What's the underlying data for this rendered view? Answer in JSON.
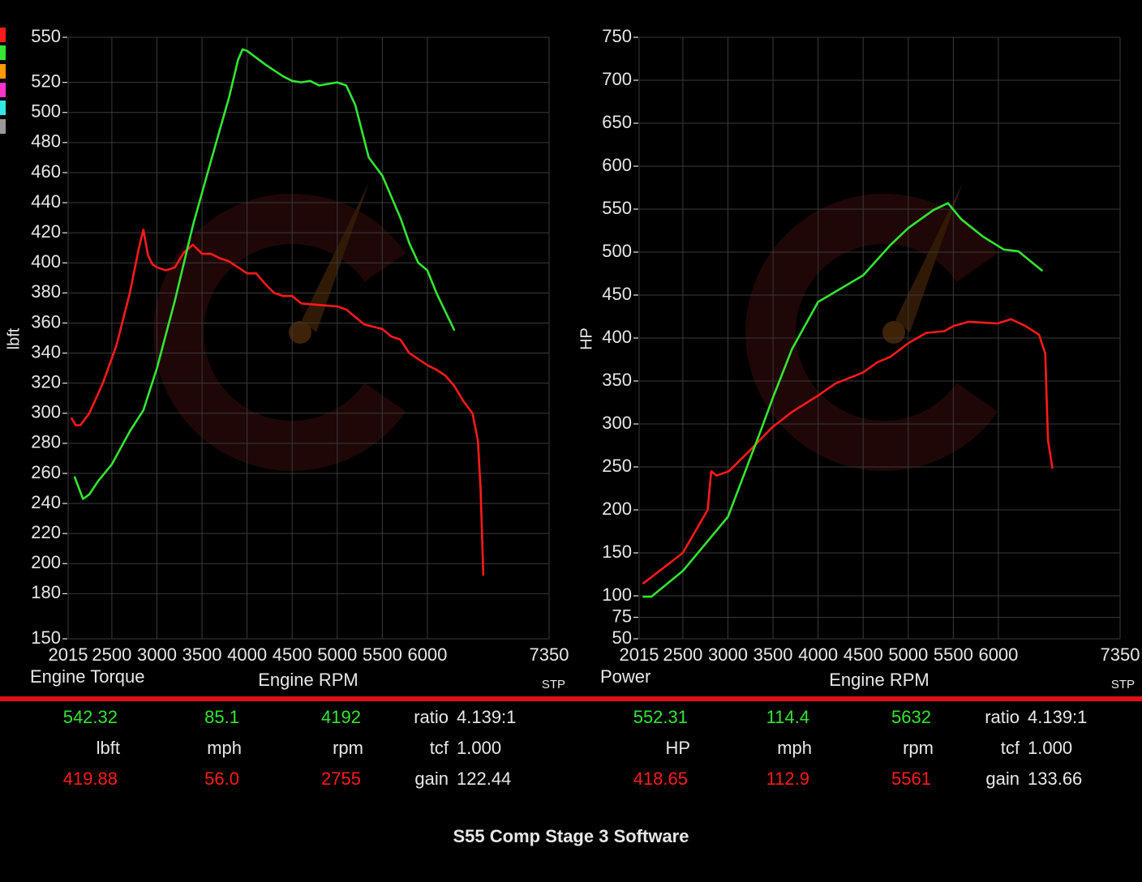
{
  "chart_data": [
    {
      "type": "line",
      "label": "Engine Torque",
      "y_label": "lbft",
      "x_label": "Engine RPM",
      "note": "STP",
      "xlim": [
        2015,
        7350
      ],
      "xticks": [
        2015,
        2500,
        3000,
        3500,
        4000,
        4500,
        5000,
        5500,
        6000,
        7350
      ],
      "ylim": [
        150,
        550
      ],
      "yticks": [
        150,
        180,
        200,
        220,
        240,
        260,
        280,
        300,
        320,
        340,
        360,
        380,
        400,
        420,
        440,
        460,
        480,
        500,
        520,
        550
      ],
      "grid": true,
      "series": [
        {
          "color": "#ff1a1a",
          "x": [
            2050,
            2100,
            2150,
            2250,
            2400,
            2550,
            2700,
            2800,
            2850,
            2900,
            2950,
            3000,
            3100,
            3200,
            3300,
            3400,
            3500,
            3600,
            3700,
            3800,
            3900,
            4000,
            4100,
            4200,
            4300,
            4400,
            4500,
            4600,
            4800,
            5000,
            5100,
            5200,
            5300,
            5500,
            5600,
            5700,
            5800,
            6000,
            6100,
            6200,
            6300,
            6400,
            6500,
            6560,
            6590,
            6620
          ],
          "values": [
            297,
            292,
            292,
            300,
            320,
            345,
            380,
            410,
            422,
            405,
            399,
            397,
            395,
            397,
            407,
            412,
            406,
            406,
            403,
            401,
            397,
            393,
            393,
            386,
            380,
            378,
            378,
            373,
            372,
            371,
            369,
            364,
            359,
            356,
            351,
            349,
            340,
            332,
            329,
            325,
            318,
            308,
            300,
            282,
            250,
            192
          ]
        },
        {
          "color": "#33e633",
          "x": [
            2085,
            2180,
            2250,
            2350,
            2500,
            2700,
            2850,
            3000,
            3200,
            3400,
            3600,
            3800,
            3900,
            3950,
            4000,
            4200,
            4400,
            4500,
            4600,
            4700,
            4800,
            4900,
            5000,
            5100,
            5200,
            5350,
            5500,
            5700,
            5800,
            5900,
            6000,
            6100,
            6300
          ],
          "values": [
            258,
            243,
            246,
            255,
            266,
            288,
            302,
            330,
            375,
            425,
            468,
            510,
            535,
            542,
            541,
            532,
            524,
            521,
            520,
            521,
            518,
            519,
            520,
            518,
            505,
            470,
            458,
            430,
            413,
            400,
            395,
            380,
            355
          ]
        }
      ]
    },
    {
      "type": "line",
      "label": "Power",
      "y_label": "HP",
      "x_label": "Engine RPM",
      "note": "STP",
      "xlim": [
        2015,
        7350
      ],
      "xticks": [
        2015,
        2500,
        3000,
        3500,
        4000,
        4500,
        5000,
        5500,
        6000,
        7350
      ],
      "ylim": [
        50,
        750
      ],
      "yticks": [
        50,
        75,
        100,
        150,
        200,
        250,
        300,
        350,
        400,
        450,
        500,
        550,
        600,
        650,
        700,
        750
      ],
      "grid": true,
      "series": [
        {
          "color": "#ff1a1a",
          "x": [
            2055,
            2500,
            2775,
            2815,
            2875,
            3010,
            3240,
            3490,
            3710,
            4000,
            4190,
            4500,
            4660,
            4800,
            5000,
            5200,
            5400,
            5500,
            5670,
            5990,
            6140,
            6300,
            6450,
            6520,
            6550,
            6600
          ],
          "values": [
            114,
            150,
            200,
            245,
            240,
            245,
            269,
            296,
            314,
            333,
            347,
            360,
            372,
            378,
            394,
            406,
            408,
            414,
            419,
            417,
            422,
            414,
            404,
            382,
            281,
            248
          ]
        },
        {
          "color": "#33e633",
          "x": [
            2055,
            2150,
            2500,
            3000,
            3370,
            3500,
            3710,
            4000,
            4500,
            4800,
            5000,
            5280,
            5440,
            5590,
            5830,
            6060,
            6220,
            6490
          ],
          "values": [
            99,
            99,
            129,
            192,
            294,
            331,
            387,
            442,
            473,
            508,
            528,
            549,
            557,
            538,
            518,
            503,
            501,
            478
          ]
        }
      ]
    }
  ],
  "readouts": [
    {
      "top": [
        "542.32",
        "85.1",
        "4192"
      ],
      "units": [
        "lbft",
        "mph",
        "rpm"
      ],
      "bottom": [
        "419.88",
        "56.0",
        "2755"
      ],
      "params": [
        {
          "label": "ratio",
          "value": "4.139:1"
        },
        {
          "label": "tcf",
          "value": "1.000"
        },
        {
          "label": "gain",
          "value": "122.44"
        }
      ]
    },
    {
      "top": [
        "552.31",
        "114.4",
        "5632"
      ],
      "units": [
        "HP",
        "mph",
        "rpm"
      ],
      "bottom": [
        "418.65",
        "112.9",
        "5561"
      ],
      "params": [
        {
          "label": "ratio",
          "value": "4.139:1"
        },
        {
          "label": "tcf",
          "value": "1.000"
        },
        {
          "label": "gain",
          "value": "133.66"
        }
      ]
    }
  ],
  "footer_title": "S55 Comp Stage 3 Software"
}
